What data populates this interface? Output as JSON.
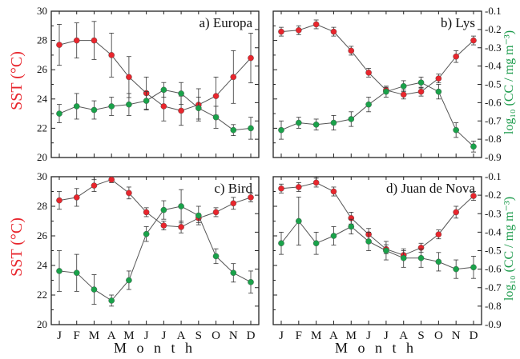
{
  "colors": {
    "sst": "#e8262d",
    "cc": "#1aa24a",
    "line": "#555555",
    "error": "#333333",
    "axis": "#222222"
  },
  "months": [
    "J",
    "F",
    "M",
    "A",
    "M",
    "J",
    "J",
    "A",
    "S",
    "O",
    "N",
    "D"
  ],
  "axes": {
    "sst_label": "SST (°C)",
    "cc_label": "log₁₀ (CC / mg m⁻³)",
    "xlabel": "M o n t h"
  },
  "chart_data": [
    {
      "type": "line",
      "title": "a) Europa",
      "categories": [
        "J",
        "F",
        "M",
        "A",
        "M",
        "J",
        "J",
        "A",
        "S",
        "O",
        "N",
        "D"
      ],
      "sst_ylim": [
        20,
        30
      ],
      "sst_ticks": [
        "20",
        "22",
        "24",
        "26",
        "28",
        "30"
      ],
      "cc_ylim": [
        -0.9,
        -0.1
      ],
      "cc_ticks": [
        "-0.9",
        "-0.8",
        "-0.7",
        "-0.6",
        "-0.5",
        "-0.4",
        "-0.3",
        "-0.2",
        "-0.1"
      ],
      "series": [
        {
          "axis": "sst",
          "values": [
            27.7,
            28.0,
            28.0,
            27.0,
            25.5,
            24.4,
            23.5,
            23.2,
            23.6,
            24.2,
            25.5,
            26.8
          ],
          "errors": [
            1.4,
            1.2,
            1.3,
            1.5,
            1.4,
            1.1,
            1.0,
            1.0,
            1.1,
            1.3,
            1.8,
            1.7
          ]
        },
        {
          "axis": "cc",
          "values": [
            -0.66,
            -0.62,
            -0.64,
            -0.62,
            -0.61,
            -0.59,
            -0.53,
            -0.55,
            -0.63,
            -0.68,
            -0.75,
            -0.74
          ],
          "errors": [
            0.05,
            0.07,
            0.05,
            0.05,
            0.06,
            0.05,
            0.04,
            0.06,
            0.06,
            0.06,
            0.03,
            0.06
          ]
        }
      ]
    },
    {
      "type": "line",
      "title": "b) Lys",
      "categories": [
        "J",
        "F",
        "M",
        "A",
        "M",
        "J",
        "J",
        "A",
        "S",
        "O",
        "N",
        "D"
      ],
      "sst_ylim": [
        20,
        30
      ],
      "sst_ticks": [
        "20",
        "22",
        "24",
        "26",
        "28",
        "30"
      ],
      "cc_ylim": [
        -0.9,
        -0.1
      ],
      "cc_ticks": [
        "-0.9",
        "-0.8",
        "-0.7",
        "-0.6",
        "-0.5",
        "-0.4",
        "-0.3",
        "-0.2",
        "-0.1"
      ],
      "series": [
        {
          "axis": "sst",
          "values": [
            28.6,
            28.7,
            29.1,
            28.6,
            27.3,
            25.8,
            24.6,
            24.3,
            24.5,
            25.4,
            26.9,
            28.0
          ],
          "errors": [
            0.3,
            0.3,
            0.3,
            0.3,
            0.3,
            0.3,
            0.2,
            0.3,
            0.3,
            0.3,
            0.4,
            0.3
          ]
        },
        {
          "axis": "cc",
          "values": [
            -0.75,
            -0.71,
            -0.72,
            -0.71,
            -0.69,
            -0.61,
            -0.54,
            -0.51,
            -0.49,
            -0.54,
            -0.75,
            -0.84
          ],
          "errors": [
            0.05,
            0.03,
            0.03,
            0.04,
            0.04,
            0.04,
            0.03,
            0.03,
            0.03,
            0.04,
            0.04,
            0.03
          ]
        }
      ]
    },
    {
      "type": "line",
      "title": "c) Bird",
      "categories": [
        "J",
        "F",
        "M",
        "A",
        "M",
        "J",
        "J",
        "A",
        "S",
        "O",
        "N",
        "D"
      ],
      "sst_ylim": [
        20,
        30
      ],
      "sst_ticks": [
        "20",
        "22",
        "24",
        "26",
        "28",
        "30"
      ],
      "cc_ylim": [
        -0.9,
        -0.1
      ],
      "cc_ticks": [
        "-0.9",
        "-0.8",
        "-0.7",
        "-0.6",
        "-0.5",
        "-0.4",
        "-0.3",
        "-0.2",
        "-0.1"
      ],
      "series": [
        {
          "axis": "sst",
          "values": [
            28.4,
            28.6,
            29.4,
            29.8,
            28.9,
            27.6,
            26.7,
            26.6,
            27.2,
            27.6,
            28.2,
            28.6
          ],
          "errors": [
            0.6,
            0.6,
            0.4,
            0.2,
            0.4,
            0.3,
            0.3,
            0.4,
            0.3,
            0.3,
            0.4,
            0.3
          ]
        },
        {
          "axis": "cc",
          "values": [
            -0.61,
            -0.62,
            -0.71,
            -0.77,
            -0.66,
            -0.41,
            -0.28,
            -0.26,
            -0.31,
            -0.53,
            -0.62,
            -0.67
          ],
          "errors": [
            0.11,
            0.1,
            0.08,
            0.03,
            0.05,
            0.04,
            0.05,
            0.09,
            0.05,
            0.04,
            0.05,
            0.06
          ]
        }
      ]
    },
    {
      "type": "line",
      "title": "d) Juan de Nova",
      "categories": [
        "J",
        "F",
        "M",
        "A",
        "M",
        "J",
        "J",
        "A",
        "S",
        "O",
        "N",
        "D"
      ],
      "sst_ylim": [
        20,
        30
      ],
      "sst_ticks": [
        "20",
        "22",
        "24",
        "26",
        "28",
        "30"
      ],
      "cc_ylim": [
        -0.9,
        -0.1
      ],
      "cc_ticks": [
        "-0.9",
        "-0.8",
        "-0.7",
        "-0.6",
        "-0.5",
        "-0.4",
        "-0.3",
        "-0.2",
        "-0.1"
      ],
      "series": [
        {
          "axis": "sst",
          "values": [
            29.2,
            29.3,
            29.6,
            29.0,
            27.2,
            26.1,
            25.1,
            24.7,
            25.2,
            26.1,
            27.6,
            28.7
          ],
          "errors": [
            0.3,
            0.3,
            0.3,
            0.3,
            0.4,
            0.4,
            0.3,
            0.3,
            0.3,
            0.3,
            0.4,
            0.3
          ]
        },
        {
          "axis": "cc",
          "values": [
            -0.46,
            -0.34,
            -0.46,
            -0.42,
            -0.37,
            -0.45,
            -0.5,
            -0.54,
            -0.54,
            -0.56,
            -0.6,
            -0.59
          ],
          "errors": [
            0.06,
            0.13,
            0.06,
            0.05,
            0.04,
            0.05,
            0.05,
            0.05,
            0.05,
            0.05,
            0.05,
            0.06
          ]
        }
      ]
    }
  ]
}
